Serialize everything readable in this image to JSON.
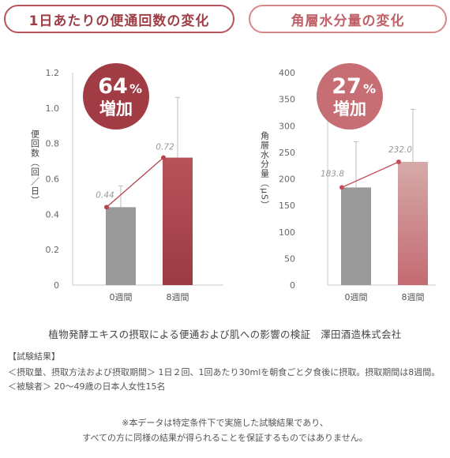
{
  "chart_data": [
    {
      "type": "bar",
      "title": "1日あたりの便通回数の変化",
      "ylabel": "便回数（回／日）",
      "categories": [
        "0週間",
        "8週間"
      ],
      "values": [
        0.44,
        0.72
      ],
      "value_labels": [
        "0.44",
        "0.72"
      ],
      "error_upper": [
        0.56,
        1.06
      ],
      "ylim": [
        0,
        1.2
      ],
      "yticks": [
        "0",
        "0.2",
        "0.4",
        "0.6",
        "0.8",
        "1.0",
        "1.2"
      ],
      "badge": {
        "percent": "64",
        "unit": "%",
        "text": "増加"
      },
      "colors": {
        "bar0": "#9a9a9a",
        "bar1": "#a8434c",
        "line": "#b5444e",
        "badge": "#a23c44"
      }
    },
    {
      "type": "bar",
      "title": "角層水分量の変化",
      "ylabel": "角層水分量（μS）",
      "categories": [
        "0週間",
        "8週間"
      ],
      "values": [
        183.8,
        232.0
      ],
      "value_labels": [
        "183.8",
        "232.0"
      ],
      "error_upper": [
        270,
        331
      ],
      "ylim": [
        0,
        400
      ],
      "yticks": [
        "0",
        "50",
        "100",
        "150",
        "200",
        "250",
        "300",
        "350",
        "400"
      ],
      "badge": {
        "percent": "27",
        "unit": "%",
        "text": "増加"
      },
      "colors": {
        "bar0": "#9a9a9a",
        "bar1": "#cf8a8f",
        "line": "#c4505a",
        "badge": "#c66e74"
      }
    }
  ],
  "caption": "植物発酵エキスの摂取による便通および肌への影響の検証　澤田酒造株式会社",
  "result_title": "【試験結果】",
  "result_body": "＜摂取量、摂取方法および摂取期間＞ 1日２回、1回あたり30mlを朝食ごと夕食後に摂取。摂取期間は8週間。＜被験者＞ 20〜49歳の日本人女性15名",
  "note_line1": "※本データは特定条件下で実施した試験結果であり、",
  "note_line2": "すべての方に同様の結果が得られることを保証するものではありません。"
}
